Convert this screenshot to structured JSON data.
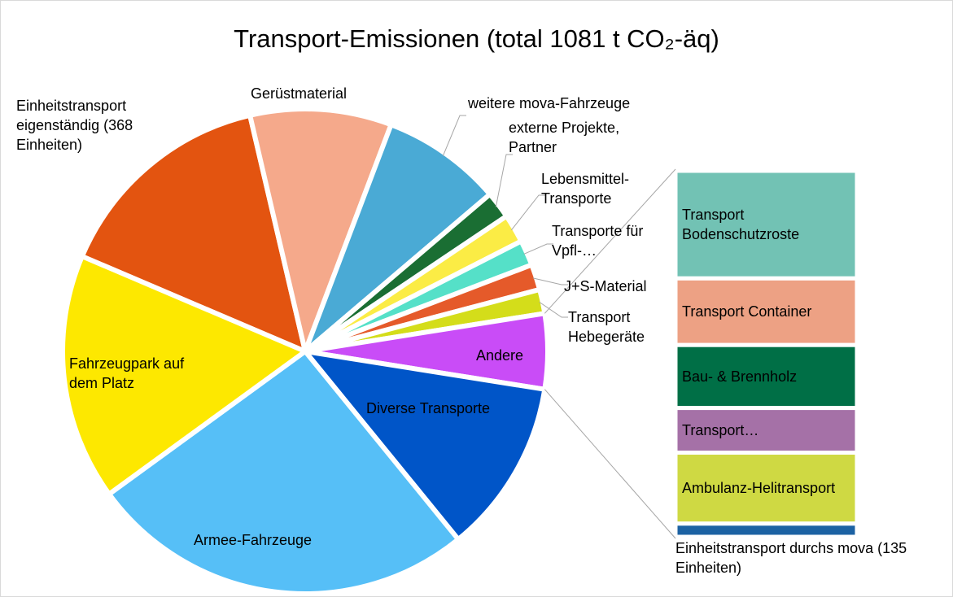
{
  "chart_data": {
    "type": "pie-of-bar",
    "title": "Transport-Emissionen (total 1081 t CO₂-äq)",
    "categories": [
      "Einheitstransport eigenständig (368 Einheiten)",
      "Gerüstmaterial",
      "weitere mova-Fahrzeuge",
      "externe Projekte, Partner",
      "Lebensmittel-Transporte",
      "Transporte für Vpfl-…",
      "J+S-Material",
      "Transport Hebegeräte",
      "Andere",
      "Diverse Transporte",
      "Armee-Fahrzeuge",
      "Fahrzeugpark auf dem Platz"
    ],
    "values": [
      14.9,
      9.4,
      8,
      1.8,
      1.9,
      1.7,
      1.7,
      1.6,
      5,
      11.6,
      25.8,
      16.4
    ],
    "colors": [
      "#e35410",
      "#f5a98b",
      "#4aaad5",
      "#1a6e33",
      "#fbec45",
      "#55e0c8",
      "#e55a2a",
      "#d4dd1a",
      "#c94cf7",
      "#0055c8",
      "#56bff7",
      "#fde800"
    ],
    "bar": {
      "categories": [
        "Transport Bodenschutzroste",
        "Transport Container",
        "Bau- & Brennholz",
        "Transport…",
        "Ambulanz-Helitransport",
        "Einheitstransport durchs mova (135 Einheiten)"
      ],
      "values": [
        1.47,
        0.91,
        0.86,
        0.61,
        0.97,
        0.18
      ],
      "colors": [
        "#72c2b4",
        "#eda184",
        "#006f46",
        "#a571a7",
        "#cfd943",
        "#1c62a3"
      ]
    }
  }
}
